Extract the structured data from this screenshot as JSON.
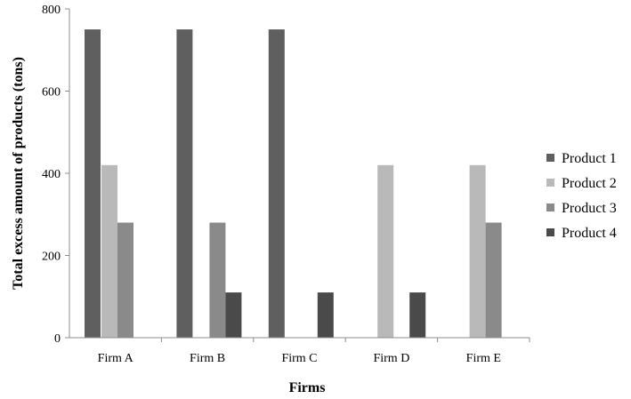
{
  "chart_data": {
    "type": "bar",
    "title": "",
    "xlabel": "Firms",
    "ylabel": "Total excess amount of products (tons)",
    "ylim": [
      0,
      800
    ],
    "yticks": [
      0,
      200,
      400,
      600,
      800
    ],
    "grid": false,
    "legend_position": "right",
    "categories": [
      "Firm A",
      "Firm B",
      "Firm C",
      "Firm D",
      "Firm E"
    ],
    "series": [
      {
        "name": "Product 1",
        "color": "#5f5f5f",
        "values": [
          750,
          750,
          750,
          0,
          0
        ]
      },
      {
        "name": "Product 2",
        "color": "#b9b9b9",
        "values": [
          420,
          0,
          0,
          420,
          420
        ]
      },
      {
        "name": "Product 3",
        "color": "#8a8a8a",
        "values": [
          280,
          280,
          0,
          0,
          280
        ]
      },
      {
        "name": "Product 4",
        "color": "#4a4a4a",
        "values": [
          0,
          110,
          110,
          110,
          0
        ]
      }
    ]
  }
}
